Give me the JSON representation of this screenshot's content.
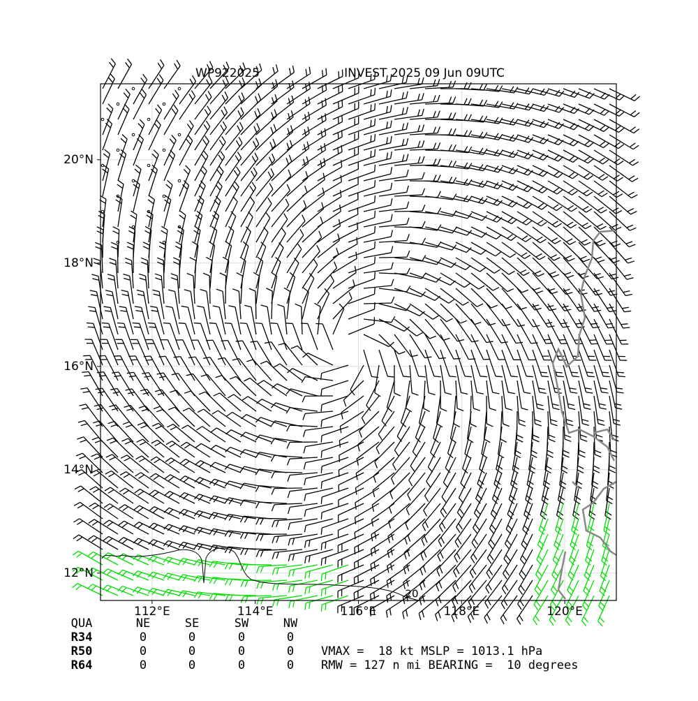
{
  "chart_data": {
    "type": "barbs",
    "title_left": "WP922025",
    "title_right": "INVEST 2025 09 Jun 09UTC",
    "xlim": [
      111,
      121
    ],
    "ylim": [
      11.47,
      21.47
    ],
    "xticks": [
      {
        "value": 112,
        "label": "112°E"
      },
      {
        "value": 114,
        "label": "114°E"
      },
      {
        "value": 116,
        "label": "116°E"
      },
      {
        "value": 118,
        "label": "118°E"
      },
      {
        "value": 120,
        "label": "120°E"
      }
    ],
    "yticks": [
      {
        "value": 12,
        "label": "12°N"
      },
      {
        "value": 14,
        "label": "14°N"
      },
      {
        "value": 16,
        "label": "16°N"
      },
      {
        "value": 18,
        "label": "18°N"
      },
      {
        "value": 20,
        "label": "20°N"
      }
    ],
    "grid": true,
    "contour_label": "20"
  },
  "table": {
    "header": [
      "QUA",
      "NE",
      "SE",
      "SW",
      "NW"
    ],
    "rows": [
      [
        "R34",
        0,
        0,
        0,
        0
      ],
      [
        "R50",
        0,
        0,
        0,
        0
      ],
      [
        "R64",
        0,
        0,
        0,
        0
      ]
    ]
  },
  "info": [
    "VMAX =  18 kt MSLP = 1013.1 hPa",
    "RMW = 127 n mi BEARING =  10 degrees"
  ]
}
